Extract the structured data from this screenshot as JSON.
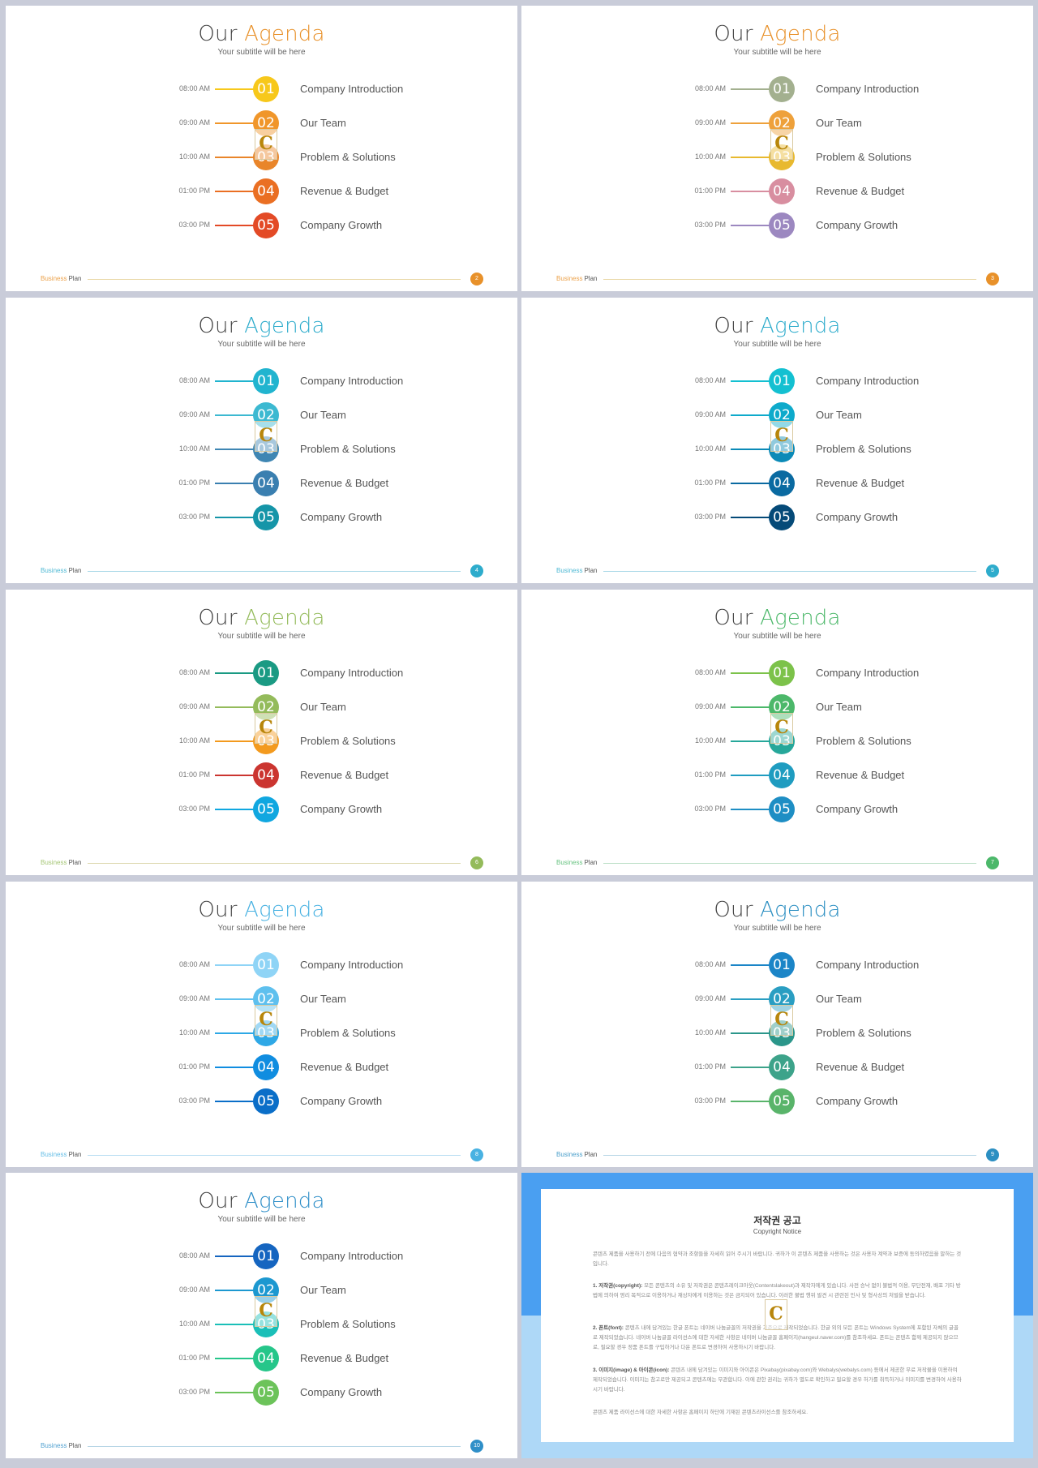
{
  "agenda": {
    "title_part1": "Our",
    "title_part2": "Agenda",
    "subtitle": "Your subtitle will be here",
    "items": [
      {
        "time": "08:00 AM",
        "number": "01",
        "label": "Company Introduction"
      },
      {
        "time": "09:00 AM",
        "number": "02",
        "label": "Our Team"
      },
      {
        "time": "10:00 AM",
        "number": "03",
        "label": "Problem & Solutions"
      },
      {
        "time": "01:00 PM",
        "number": "04",
        "label": "Revenue & Budget"
      },
      {
        "time": "03:00 PM",
        "number": "05",
        "label": "Company Growth"
      }
    ],
    "footer_brand_1": "Business",
    "footer_brand_2": "Plan"
  },
  "watermark_letter": "C",
  "slides": [
    {
      "page": "2",
      "accent": "#e8912a",
      "colors": [
        "#f7c81b",
        "#f0962a",
        "#e9852a",
        "#ea6f23",
        "#e34a26"
      ],
      "lines": [
        "#f7c81b",
        "#f0962a",
        "#e9852a",
        "#ea6f23",
        "#e34a26"
      ],
      "footer_line": "#e9d9a8"
    },
    {
      "page": "3",
      "accent": "#e8912a",
      "colors": [
        "#a3b08f",
        "#eea13b",
        "#e8b92f",
        "#d88ea0",
        "#9c88c0"
      ],
      "lines": [
        "#a3b08f",
        "#eea13b",
        "#e8b92f",
        "#d88ea0",
        "#9c88c0"
      ],
      "footer_line": "#e9d9a8"
    },
    {
      "page": "4",
      "accent": "#2eaccc",
      "colors": [
        "#21b4cf",
        "#3cb9d1",
        "#3f86b3",
        "#3a7fb0",
        "#1595a8"
      ],
      "lines": [
        "#21b4cf",
        "#3cb9d1",
        "#3f86b3",
        "#3a7fb0",
        "#1595a8"
      ],
      "footer_line": "#aad9e8"
    },
    {
      "page": "5",
      "accent": "#2eaccc",
      "colors": [
        "#13c0d1",
        "#0eaacb",
        "#0b8ab7",
        "#0a6aa1",
        "#054a78"
      ],
      "lines": [
        "#13c0d1",
        "#0eaacb",
        "#0b8ab7",
        "#0a6aa1",
        "#054a78"
      ],
      "footer_line": "#aad9e8"
    },
    {
      "page": "6",
      "accent": "#94bb5b",
      "colors": [
        "#1a9a83",
        "#94bb5b",
        "#f39a1e",
        "#cb3530",
        "#10a7e0"
      ],
      "lines": [
        "#1a9a83",
        "#94bb5b",
        "#f39a1e",
        "#cb3530",
        "#10a7e0"
      ],
      "footer_line": "#ddd9b0"
    },
    {
      "page": "7",
      "accent": "#4cb86a",
      "colors": [
        "#7cc24a",
        "#4cb86a",
        "#26a79a",
        "#1f9cc0",
        "#1e8ec4"
      ],
      "lines": [
        "#7cc24a",
        "#4cb86a",
        "#26a79a",
        "#1f9cc0",
        "#1e8ec4"
      ],
      "footer_line": "#bde0c8"
    },
    {
      "page": "8",
      "accent": "#49b2e2",
      "colors": [
        "#8fd4f6",
        "#5ec0ee",
        "#2ea8e6",
        "#108de0",
        "#0a6ec8"
      ],
      "lines": [
        "#8fd4f6",
        "#5ec0ee",
        "#2ea8e6",
        "#108de0",
        "#0a6ec8"
      ],
      "footer_line": "#b8def2"
    },
    {
      "page": "9",
      "accent": "#2c8fc2",
      "colors": [
        "#1b85c7",
        "#2a9ec2",
        "#2b968a",
        "#3da38a",
        "#59b46a"
      ],
      "lines": [
        "#1b85c7",
        "#2a9ec2",
        "#2b968a",
        "#3da38a",
        "#59b46a"
      ],
      "footer_line": "#b7d6e6"
    },
    {
      "page": "10",
      "accent": "#2f8fc8",
      "colors": [
        "#1565c0",
        "#1c98d0",
        "#1abfb8",
        "#26c68a",
        "#6cc35a"
      ],
      "lines": [
        "#1565c0",
        "#1c98d0",
        "#1abfb8",
        "#26c68a",
        "#6cc35a"
      ],
      "footer_line": "#b7d6e6"
    }
  ],
  "notice": {
    "title": "저작권 공고",
    "subtitle": "Copyright Notice",
    "intro": "콘텐츠 제품을 사용하기 전에 다음의 협약과 조항들을 자세히 읽어 주시기 바랍니다. 귀하가 이 콘텐츠 제품을 사용하는 것은 사용자 계약과 보증에 동의하였음을 말하는 것입니다.",
    "p1_head": "1. 저작권(copyright):",
    "p1_body": "모든 콘텐츠의 소유 및 저작권은 콘텐츠레이크아웃(Contentslakeout)과 제작자에게 있습니다. 사전 승낙 없이 불법적 이용, 무단전재, 배포 기타 방법에 의하여 영리 목적으로 이용하거나 재상자에게 이용하는 것은 금지되어 있습니다. 이러한 불법 행위 발견 시 관련된 민사 및 형사상의 처벌을 받습니다.",
    "p2_head": "2. 폰트(font):",
    "p2_body": "콘텐츠 내에 담겨있는 한글 폰트는 네이버 나눔글꼴의 저작권을 기준으로 제작되었습니다. 한글 외의 모든 폰트는 Windows System에 포함된 자체의 글꼴로 제작되었습니다. 네이버 나눔글꼴 라이선스에 대한 자세한 사항은 네이버 나눔글꼴 홈페이지(hangeul.naver.com)를 참조하세요. 폰트는 콘텐츠 함께 제공되지 않으므로, 필요할 경우 정품 폰트를 구입하거나 다운 폰트로 변경하여 사용하시기 바랍니다.",
    "p3_head": "3. 이미지(image) & 아이콘(icon):",
    "p3_body": "콘텐츠 내에 담겨있는 이미지와 아이콘은 Pixabay(pixabay.com)와 Webalys(webalys.com) 등에서 제공한 무료 저작물을 이용하여 제작되었습니다. 이미지는 참고로만 제공되고 콘텐츠에는 무관합니다. 이에 관한 권리는 귀하가 별도로 확인하고 필요할 경우 허가를 취득하거나 이미지를 변경하여 사용하시기 바랍니다.",
    "closing": "콘텐츠 제품 라이선스에 대한 자세한 사항은 홈페이지 하단에 기재된 콘텐츠라이선스를 참조하세요."
  }
}
